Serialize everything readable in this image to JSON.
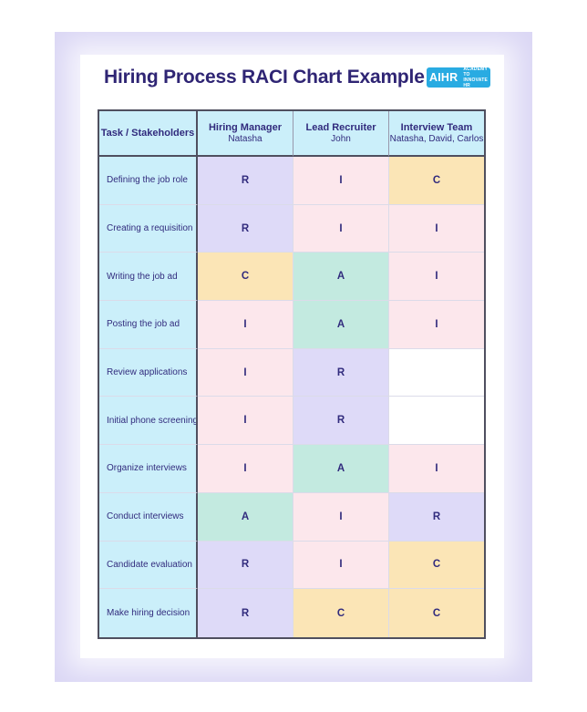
{
  "page": {
    "title": "Hiring Process RACI Chart Example",
    "logo": {
      "text": "AIHR",
      "tagline_line1": "ACADEMY TO",
      "tagline_line2": "INNOVATE HR"
    }
  },
  "table": {
    "columns": [
      {
        "title": "Task / Stakeholders",
        "subtitle": ""
      },
      {
        "title": "Hiring Manager",
        "subtitle": "Natasha"
      },
      {
        "title": "Lead Recruiter",
        "subtitle": "John"
      },
      {
        "title": "Interview Team",
        "subtitle": "Natasha, David, Carlos"
      }
    ],
    "rows": [
      {
        "task": "Defining the job role",
        "cells": [
          "R",
          "I",
          "C"
        ]
      },
      {
        "task": "Creating a requisition",
        "cells": [
          "R",
          "I",
          "I"
        ]
      },
      {
        "task": "Writing the job ad",
        "cells": [
          "C",
          "A",
          "I"
        ]
      },
      {
        "task": "Posting the job ad",
        "cells": [
          "I",
          "A",
          "I"
        ]
      },
      {
        "task": "Review applications",
        "cells": [
          "I",
          "R",
          ""
        ]
      },
      {
        "task": "Initial phone screening",
        "cells": [
          "I",
          "R",
          ""
        ]
      },
      {
        "task": "Organize interviews",
        "cells": [
          "I",
          "A",
          "I"
        ]
      },
      {
        "task": "Conduct interviews",
        "cells": [
          "A",
          "I",
          "R"
        ]
      },
      {
        "task": "Candidate evaluation",
        "cells": [
          "R",
          "I",
          "C"
        ]
      },
      {
        "task": "Make hiring decision",
        "cells": [
          "R",
          "C",
          "C"
        ]
      }
    ]
  },
  "colors": {
    "panel_background": "#DBD7F5",
    "card_background": "#FFFFFF",
    "title_text": "#2F2574",
    "logo_blue": "#29ABE2",
    "header_cyan": "#CBEFFA",
    "cell_text": "#312B7D",
    "raci_r": "#DEDAF8",
    "raci_a": "#C3EAE0",
    "raci_c": "#FBE5B6",
    "raci_i": "#FCE7EC",
    "dark_border": "#4F4F5F",
    "grid_line": "#DBDBE9"
  }
}
